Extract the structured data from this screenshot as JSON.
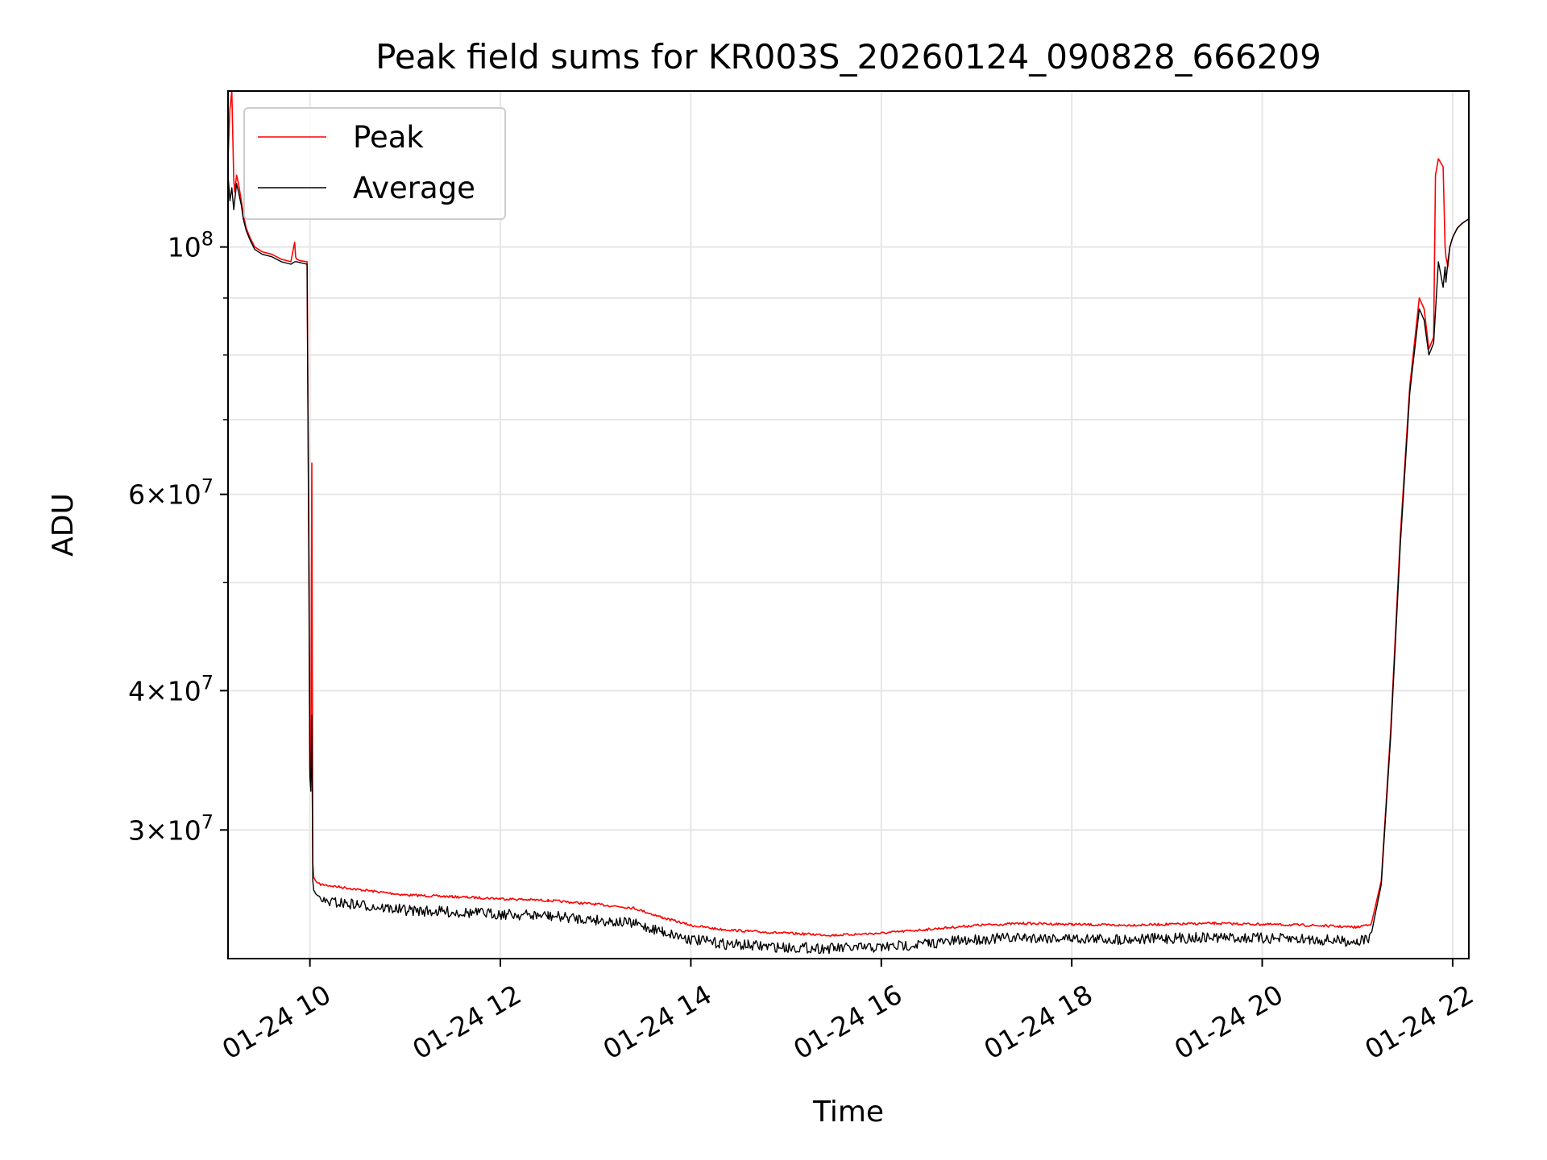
{
  "chart_data": {
    "type": "line",
    "title": "Peak field sums for KR003S_20260124_090828_666209",
    "xlabel": "Time",
    "ylabel": "ADU",
    "yscale": "log",
    "xlim_hours": [
      9.14,
      22.17
    ],
    "ylim": [
      23000000,
      138000000
    ],
    "grid": true,
    "legend_position": "upper-left",
    "x_ticks": [
      {
        "value": 10,
        "label": "01-24 10"
      },
      {
        "value": 12,
        "label": "01-24 12"
      },
      {
        "value": 14,
        "label": "01-24 14"
      },
      {
        "value": 16,
        "label": "01-24 16"
      },
      {
        "value": 18,
        "label": "01-24 18"
      },
      {
        "value": 20,
        "label": "01-24 20"
      },
      {
        "value": 22,
        "label": "01-24 22"
      }
    ],
    "y_ticks": [
      {
        "value": 100000000,
        "mantissa": "",
        "exponent": "8"
      },
      {
        "value": 60000000,
        "mantissa": "6",
        "exponent": "7"
      },
      {
        "value": 40000000,
        "mantissa": "4",
        "exponent": "7"
      },
      {
        "value": 30000000,
        "mantissa": "3",
        "exponent": "7"
      }
    ],
    "y_minor_ticks": [
      90000000,
      80000000,
      70000000,
      50000000
    ],
    "series": [
      {
        "name": "Peak",
        "color": "#ff0000",
        "x": [
          9.14,
          9.16,
          9.18,
          9.2,
          9.21,
          9.23,
          9.25,
          9.28,
          9.3,
          9.33,
          9.37,
          9.42,
          9.5,
          9.6,
          9.7,
          9.8,
          9.84,
          9.85,
          9.86,
          9.9,
          9.97,
          9.99,
          10.0,
          10.01,
          10.02,
          10.03,
          10.04,
          10.05,
          10.06,
          10.08,
          10.5,
          11.0,
          11.5,
          12.0,
          12.5,
          13.0,
          13.4,
          13.7,
          14.0,
          14.3,
          14.6,
          15.0,
          15.5,
          16.0,
          16.5,
          17.0,
          17.5,
          18.0,
          18.5,
          19.0,
          19.5,
          20.0,
          20.5,
          21.0,
          21.15,
          21.25,
          21.35,
          21.45,
          21.55,
          21.65,
          21.7,
          21.75,
          21.8,
          21.82,
          21.85,
          21.9,
          21.92,
          21.93,
          21.95,
          21.97,
          22.0,
          22.05,
          22.1,
          22.17
        ],
        "y": [
          120000000,
          133000000,
          138000000,
          115000000,
          112000000,
          116000000,
          114000000,
          110000000,
          107000000,
          104000000,
          102000000,
          100000000,
          99000000,
          98500000,
          97500000,
          97000000,
          101000000,
          98000000,
          97500000,
          97200000,
          97000000,
          50000000,
          34000000,
          33000000,
          64000000,
          28000000,
          27200000,
          27100000,
          27000000,
          26900000,
          26600000,
          26300000,
          26200000,
          26100000,
          26000000,
          25800000,
          25600000,
          25100000,
          24700000,
          24500000,
          24400000,
          24300000,
          24200000,
          24300000,
          24500000,
          24700000,
          24800000,
          24750000,
          24700000,
          24750000,
          24800000,
          24750000,
          24700000,
          24600000,
          24800000,
          27000000,
          37000000,
          55000000,
          75000000,
          90000000,
          88000000,
          81000000,
          83000000,
          116000000,
          120000000,
          118000000,
          100000000,
          98000000,
          96000000,
          100000000,
          102000000,
          104000000,
          105000000,
          106000000
        ]
      },
      {
        "name": "Average",
        "color": "#000000",
        "x": [
          9.14,
          9.16,
          9.18,
          9.2,
          9.21,
          9.23,
          9.25,
          9.28,
          9.3,
          9.33,
          9.37,
          9.42,
          9.5,
          9.6,
          9.7,
          9.8,
          9.84,
          9.86,
          9.9,
          9.97,
          9.99,
          10.0,
          10.01,
          10.02,
          10.03,
          10.04,
          10.05,
          10.06,
          10.08,
          10.5,
          11.0,
          11.5,
          12.0,
          12.5,
          13.0,
          13.4,
          13.7,
          14.0,
          14.3,
          14.6,
          15.0,
          15.5,
          16.0,
          16.5,
          17.0,
          17.5,
          18.0,
          18.5,
          19.0,
          19.5,
          20.0,
          20.5,
          21.0,
          21.15,
          21.25,
          21.35,
          21.45,
          21.55,
          21.65,
          21.7,
          21.75,
          21.8,
          21.85,
          21.9,
          21.92,
          21.93,
          21.95,
          21.97,
          22.0,
          22.05,
          22.1,
          22.17
        ],
        "y": [
          116000000,
          110000000,
          113000000,
          108000000,
          110000000,
          114000000,
          112000000,
          109000000,
          106000000,
          103500000,
          101500000,
          99500000,
          98500000,
          98000000,
          97000000,
          96500000,
          97000000,
          97000000,
          96800000,
          96500000,
          50000000,
          33500000,
          32500000,
          38000000,
          27000000,
          26500000,
          26400000,
          26300000,
          26200000,
          26000000,
          25700000,
          25600000,
          25500000,
          25400000,
          25200000,
          25000000,
          24600000,
          24200000,
          24000000,
          23900000,
          23800000,
          23750000,
          23800000,
          24000000,
          24200000,
          24300000,
          24250000,
          24200000,
          24250000,
          24300000,
          24250000,
          24200000,
          24100000,
          24300000,
          26800000,
          36500000,
          54000000,
          74000000,
          88000000,
          86000000,
          80000000,
          82000000,
          97000000,
          92000000,
          96000000,
          93000000,
          97000000,
          100000000,
          102000000,
          104000000,
          105000000,
          106000000
        ]
      }
    ]
  }
}
